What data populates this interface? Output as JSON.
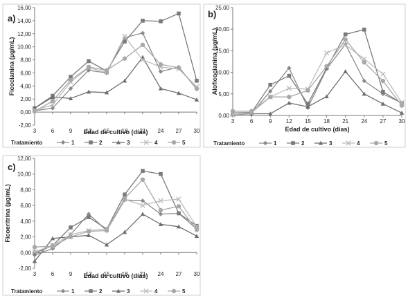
{
  "legend": {
    "title": "Tratamiento",
    "entries": [
      {
        "label": "1",
        "marker": "diamond",
        "color": "#8a8a8a"
      },
      {
        "label": "2",
        "marker": "square",
        "color": "#7a7a7a"
      },
      {
        "label": "3",
        "marker": "triangle",
        "color": "#6e6e6e"
      },
      {
        "label": "4",
        "marker": "cross",
        "color": "#bdbdbd"
      },
      {
        "label": "5",
        "marker": "circle",
        "color": "#a8a8a8"
      }
    ]
  },
  "chart_data": [
    {
      "panel": "a)",
      "type": "line",
      "xlabel": "Edad de cultivo (días)",
      "ylabel": "Ficocianina (µg/mL)",
      "x": [
        3,
        6,
        9,
        12,
        15,
        18,
        21,
        24,
        27,
        30
      ],
      "ylim": [
        -2,
        16
      ],
      "yticks": [
        "-2,00",
        "0,00",
        "2,00",
        "4,00",
        "6,00",
        "8,00",
        "10,00",
        "12,00",
        "14,00",
        "16,00"
      ],
      "grid": false,
      "series": [
        {
          "name": "1",
          "values": [
            0.2,
            0.6,
            3.6,
            6.4,
            6.0,
            11.4,
            12.1,
            6.2,
            6.9,
            3.5
          ]
        },
        {
          "name": "2",
          "values": [
            0.6,
            2.5,
            5.4,
            7.8,
            6.3,
            10.8,
            14.0,
            13.9,
            15.1,
            4.8
          ]
        },
        {
          "name": "3",
          "values": [
            0.6,
            2.3,
            2.1,
            3.1,
            3.0,
            4.8,
            8.4,
            3.6,
            2.9,
            1.9
          ]
        },
        {
          "name": "4",
          "values": [
            0.3,
            1.1,
            4.6,
            6.8,
            6.1,
            11.6,
            8.0,
            6.9,
            6.6,
            3.9
          ]
        },
        {
          "name": "5",
          "values": [
            0.1,
            1.7,
            4.9,
            6.9,
            6.4,
            8.2,
            10.3,
            7.3,
            6.8,
            3.6
          ]
        }
      ]
    },
    {
      "panel": "b)",
      "type": "line",
      "xlabel": "Edad de cultivo (días)",
      "ylabel": "Aloficocianina (µg/mL)",
      "x": [
        3,
        6,
        9,
        12,
        15,
        18,
        21,
        24,
        27,
        30
      ],
      "ylim": [
        0,
        25
      ],
      "yticks": [
        "0,00",
        "5,00",
        "10,00",
        "15,00",
        "20,00",
        "25,00"
      ],
      "grid": false,
      "series": [
        {
          "name": "1",
          "values": [
            0.2,
            0.5,
            5.6,
            11.0,
            1.8,
            10.8,
            16.5,
            8.0,
            5.0,
            2.9
          ]
        },
        {
          "name": "2",
          "values": [
            0.6,
            0.7,
            7.1,
            9.2,
            2.7,
            11.0,
            18.8,
            19.9,
            5.5,
            2.8
          ]
        },
        {
          "name": "3",
          "values": [
            0.2,
            0.4,
            0.4,
            2.9,
            2.0,
            4.4,
            10.2,
            5.0,
            2.7,
            0.6
          ]
        },
        {
          "name": "4",
          "values": [
            0.2,
            0.6,
            4.3,
            6.3,
            6.1,
            14.5,
            16.4,
            13.1,
            9.6,
            3.0
          ]
        },
        {
          "name": "5",
          "values": [
            1.0,
            1.0,
            4.3,
            4.3,
            5.8,
            11.4,
            17.6,
            12.3,
            8.0,
            2.3
          ]
        }
      ]
    },
    {
      "panel": "c)",
      "type": "line",
      "xlabel": "Edad de cultivo (días)",
      "ylabel": "Ficoeritrina (µg/mL)",
      "x": [
        3,
        6,
        9,
        12,
        15,
        18,
        21,
        24,
        27,
        30
      ],
      "ylim": [
        -2,
        12
      ],
      "yticks": [
        "-2,00",
        "0,00",
        "2,00",
        "4,00",
        "6,00",
        "8,00",
        "10,00",
        "12,00"
      ],
      "grid": false,
      "series": [
        {
          "name": "1",
          "values": [
            -0.3,
            0.5,
            2.3,
            4.9,
            2.8,
            6.7,
            6.6,
            4.9,
            5.0,
            3.0
          ]
        },
        {
          "name": "2",
          "values": [
            -0.1,
            0.9,
            3.2,
            4.5,
            3.0,
            7.4,
            10.4,
            10.0,
            5.0,
            3.4
          ]
        },
        {
          "name": "3",
          "values": [
            -1.1,
            1.8,
            2.0,
            2.2,
            1.0,
            2.6,
            4.9,
            3.6,
            3.3,
            2.1
          ]
        },
        {
          "name": "4",
          "values": [
            0.1,
            0.9,
            2.3,
            2.8,
            3.0,
            6.8,
            6.0,
            6.6,
            6.8,
            3.3
          ]
        },
        {
          "name": "5",
          "values": [
            0.7,
            0.8,
            2.0,
            2.7,
            2.8,
            6.9,
            9.3,
            5.4,
            5.9,
            2.9
          ]
        }
      ]
    }
  ]
}
